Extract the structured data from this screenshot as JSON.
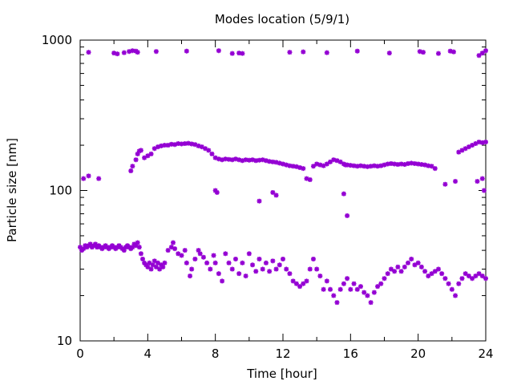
{
  "chart_data": {
    "type": "scatter",
    "title": "Modes location (5/9/1)",
    "xlabel": "Time [hour]",
    "ylabel": "Particle size [nm]",
    "xlim": [
      0,
      24
    ],
    "ylim": [
      10,
      1000
    ],
    "yscale": "log",
    "xticks": [
      "0",
      "4",
      "8",
      "12",
      "16",
      "20",
      "24"
    ],
    "yticks": [
      "10",
      "100",
      "1000"
    ],
    "grid": false,
    "legend": "none",
    "marker_color": "#9400d3",
    "series": [
      {
        "values": [
          [
            0.0,
            42
          ],
          [
            0.1,
            40
          ],
          [
            0.2,
            41
          ],
          [
            0.3,
            43
          ],
          [
            0.4,
            42
          ],
          [
            0.5,
            43
          ],
          [
            0.6,
            44
          ],
          [
            0.7,
            42
          ],
          [
            0.8,
            43
          ],
          [
            0.9,
            44
          ],
          [
            1.0,
            42
          ],
          [
            1.1,
            43
          ],
          [
            1.2,
            42
          ],
          [
            1.3,
            41
          ],
          [
            1.4,
            42
          ],
          [
            1.5,
            43
          ],
          [
            1.6,
            42
          ],
          [
            1.7,
            41
          ],
          [
            1.8,
            42
          ],
          [
            1.9,
            43
          ],
          [
            2.0,
            42
          ],
          [
            2.1,
            41
          ],
          [
            2.2,
            42
          ],
          [
            2.3,
            43
          ],
          [
            2.4,
            42
          ],
          [
            2.5,
            41
          ],
          [
            2.6,
            40
          ],
          [
            2.7,
            42
          ],
          [
            2.8,
            43
          ],
          [
            2.9,
            42
          ],
          [
            3.0,
            41
          ],
          [
            3.1,
            42
          ],
          [
            3.2,
            44
          ],
          [
            3.3,
            43
          ],
          [
            3.4,
            45
          ],
          [
            3.5,
            42
          ],
          [
            3.6,
            38
          ],
          [
            3.7,
            35
          ],
          [
            3.8,
            33
          ],
          [
            3.9,
            32
          ],
          [
            4.0,
            31
          ],
          [
            4.1,
            33
          ],
          [
            4.2,
            30
          ],
          [
            4.3,
            32
          ],
          [
            4.4,
            34
          ],
          [
            4.5,
            31
          ],
          [
            4.6,
            33
          ],
          [
            4.7,
            30
          ],
          [
            4.8,
            32
          ],
          [
            4.9,
            31
          ],
          [
            5.0,
            33
          ],
          [
            5.2,
            40
          ],
          [
            5.4,
            42
          ],
          [
            5.5,
            45
          ],
          [
            5.6,
            41
          ],
          [
            5.8,
            38
          ],
          [
            6.0,
            37
          ],
          [
            6.2,
            40
          ],
          [
            6.3,
            33
          ],
          [
            6.5,
            27
          ],
          [
            6.6,
            30
          ],
          [
            6.8,
            35
          ],
          [
            7.0,
            40
          ],
          [
            7.1,
            38
          ],
          [
            7.3,
            36
          ],
          [
            7.5,
            33
          ],
          [
            7.7,
            30
          ],
          [
            7.9,
            37
          ],
          [
            8.0,
            33
          ],
          [
            8.2,
            28
          ],
          [
            8.4,
            25
          ],
          [
            8.6,
            38
          ],
          [
            8.8,
            33
          ],
          [
            9.0,
            30
          ],
          [
            9.2,
            35
          ],
          [
            9.4,
            28
          ],
          [
            9.6,
            33
          ],
          [
            9.8,
            27
          ],
          [
            10.0,
            38
          ],
          [
            10.2,
            32
          ],
          [
            10.4,
            29
          ],
          [
            10.6,
            35
          ],
          [
            10.8,
            30
          ],
          [
            11.0,
            33
          ],
          [
            11.2,
            29
          ],
          [
            11.4,
            34
          ],
          [
            11.6,
            30
          ],
          [
            11.8,
            32
          ],
          [
            12.0,
            35
          ],
          [
            12.2,
            30
          ],
          [
            12.4,
            28
          ],
          [
            12.6,
            25
          ],
          [
            12.8,
            24
          ],
          [
            13.0,
            23
          ],
          [
            13.2,
            24
          ],
          [
            13.4,
            25
          ],
          [
            13.6,
            30
          ],
          [
            13.8,
            35
          ],
          [
            14.0,
            30
          ],
          [
            14.2,
            27
          ],
          [
            14.4,
            22
          ],
          [
            14.6,
            25
          ],
          [
            14.8,
            22
          ],
          [
            15.0,
            20
          ],
          [
            15.2,
            18
          ],
          [
            15.4,
            22
          ],
          [
            15.6,
            24
          ],
          [
            15.8,
            26
          ],
          [
            16.0,
            22
          ],
          [
            16.2,
            24
          ],
          [
            16.4,
            22
          ],
          [
            16.6,
            23
          ],
          [
            16.8,
            21
          ],
          [
            17.0,
            20
          ],
          [
            17.2,
            18
          ],
          [
            17.4,
            21
          ],
          [
            17.6,
            23
          ],
          [
            17.8,
            24
          ],
          [
            18.0,
            26
          ],
          [
            18.2,
            28
          ],
          [
            18.4,
            30
          ],
          [
            18.6,
            29
          ],
          [
            18.8,
            31
          ],
          [
            19.0,
            29
          ],
          [
            19.2,
            31
          ],
          [
            19.4,
            33
          ],
          [
            19.6,
            35
          ],
          [
            19.8,
            32
          ],
          [
            20.0,
            33
          ],
          [
            20.2,
            31
          ],
          [
            20.4,
            29
          ],
          [
            20.6,
            27
          ],
          [
            20.8,
            28
          ],
          [
            21.0,
            29
          ],
          [
            21.2,
            30
          ],
          [
            21.4,
            28
          ],
          [
            21.6,
            26
          ],
          [
            21.8,
            24
          ],
          [
            22.0,
            22
          ],
          [
            22.2,
            20
          ],
          [
            22.4,
            24
          ],
          [
            22.6,
            26
          ],
          [
            22.8,
            28
          ],
          [
            23.0,
            27
          ],
          [
            23.2,
            26
          ],
          [
            23.4,
            27
          ],
          [
            23.6,
            28
          ],
          [
            23.8,
            27
          ],
          [
            24.0,
            26
          ],
          [
            0.2,
            120
          ],
          [
            0.5,
            125
          ],
          [
            1.1,
            120
          ],
          [
            3.0,
            135
          ],
          [
            3.1,
            145
          ],
          [
            3.3,
            160
          ],
          [
            3.4,
            175
          ],
          [
            3.5,
            183
          ],
          [
            3.6,
            185
          ],
          [
            3.8,
            165
          ],
          [
            4.0,
            170
          ],
          [
            4.2,
            175
          ],
          [
            4.4,
            190
          ],
          [
            4.6,
            195
          ],
          [
            4.8,
            198
          ],
          [
            5.0,
            200
          ],
          [
            5.2,
            200
          ],
          [
            5.4,
            203
          ],
          [
            5.6,
            202
          ],
          [
            5.8,
            205
          ],
          [
            6.0,
            204
          ],
          [
            6.2,
            205
          ],
          [
            6.4,
            206
          ],
          [
            6.6,
            204
          ],
          [
            6.8,
            202
          ],
          [
            7.0,
            198
          ],
          [
            7.2,
            195
          ],
          [
            7.4,
            190
          ],
          [
            7.6,
            185
          ],
          [
            7.8,
            175
          ],
          [
            8.0,
            165
          ],
          [
            8.2,
            162
          ],
          [
            8.4,
            160
          ],
          [
            8.6,
            162
          ],
          [
            8.8,
            161
          ],
          [
            9.0,
            160
          ],
          [
            9.2,
            162
          ],
          [
            9.4,
            160
          ],
          [
            9.6,
            158
          ],
          [
            9.8,
            160
          ],
          [
            10.0,
            159
          ],
          [
            10.2,
            160
          ],
          [
            10.4,
            158
          ],
          [
            10.6,
            159
          ],
          [
            10.8,
            160
          ],
          [
            11.0,
            158
          ],
          [
            11.2,
            156
          ],
          [
            11.4,
            155
          ],
          [
            11.6,
            154
          ],
          [
            11.8,
            152
          ],
          [
            12.0,
            150
          ],
          [
            12.2,
            148
          ],
          [
            12.4,
            146
          ],
          [
            12.6,
            145
          ],
          [
            12.8,
            144
          ],
          [
            13.0,
            142
          ],
          [
            13.2,
            140
          ],
          [
            13.4,
            120
          ],
          [
            13.6,
            118
          ],
          [
            13.8,
            145
          ],
          [
            14.0,
            150
          ],
          [
            14.2,
            148
          ],
          [
            14.4,
            146
          ],
          [
            14.6,
            150
          ],
          [
            14.8,
            155
          ],
          [
            15.0,
            160
          ],
          [
            15.2,
            158
          ],
          [
            15.4,
            155
          ],
          [
            15.6,
            150
          ],
          [
            15.8,
            148
          ],
          [
            16.0,
            147
          ],
          [
            16.2,
            146
          ],
          [
            16.4,
            145
          ],
          [
            16.6,
            146
          ],
          [
            16.8,
            145
          ],
          [
            17.0,
            144
          ],
          [
            17.2,
            145
          ],
          [
            17.4,
            146
          ],
          [
            17.6,
            145
          ],
          [
            17.8,
            146
          ],
          [
            18.0,
            148
          ],
          [
            18.2,
            150
          ],
          [
            18.4,
            151
          ],
          [
            18.6,
            150
          ],
          [
            18.8,
            149
          ],
          [
            19.0,
            150
          ],
          [
            19.2,
            149
          ],
          [
            19.4,
            151
          ],
          [
            19.6,
            152
          ],
          [
            19.8,
            151
          ],
          [
            20.0,
            150
          ],
          [
            20.2,
            149
          ],
          [
            20.4,
            148
          ],
          [
            20.6,
            146
          ],
          [
            20.8,
            145
          ],
          [
            21.0,
            140
          ],
          [
            21.6,
            110
          ],
          [
            22.2,
            115
          ],
          [
            22.4,
            180
          ],
          [
            22.6,
            185
          ],
          [
            22.8,
            190
          ],
          [
            23.0,
            195
          ],
          [
            23.2,
            200
          ],
          [
            23.4,
            205
          ],
          [
            23.6,
            210
          ],
          [
            23.8,
            208
          ],
          [
            24.0,
            210
          ],
          [
            23.8,
            120
          ],
          [
            23.9,
            100
          ],
          [
            8.0,
            100
          ],
          [
            8.1,
            97
          ],
          [
            10.6,
            85
          ],
          [
            11.4,
            97
          ],
          [
            11.6,
            93
          ],
          [
            15.6,
            95
          ],
          [
            15.8,
            68
          ],
          [
            15.7,
            148
          ],
          [
            23.5,
            115
          ],
          [
            0.5,
            830
          ],
          [
            2.0,
            820
          ],
          [
            2.2,
            810
          ],
          [
            2.6,
            825
          ],
          [
            2.9,
            840
          ],
          [
            3.1,
            850
          ],
          [
            3.3,
            845
          ],
          [
            3.4,
            830
          ],
          [
            4.5,
            840
          ],
          [
            6.3,
            845
          ],
          [
            8.2,
            850
          ],
          [
            9.0,
            815
          ],
          [
            9.4,
            820
          ],
          [
            9.6,
            815
          ],
          [
            12.4,
            830
          ],
          [
            13.2,
            835
          ],
          [
            14.6,
            825
          ],
          [
            16.4,
            845
          ],
          [
            18.3,
            820
          ],
          [
            20.1,
            840
          ],
          [
            20.3,
            830
          ],
          [
            21.2,
            815
          ],
          [
            21.9,
            845
          ],
          [
            22.1,
            835
          ],
          [
            23.6,
            790
          ],
          [
            23.8,
            820
          ],
          [
            24.0,
            850
          ]
        ]
      }
    ]
  }
}
